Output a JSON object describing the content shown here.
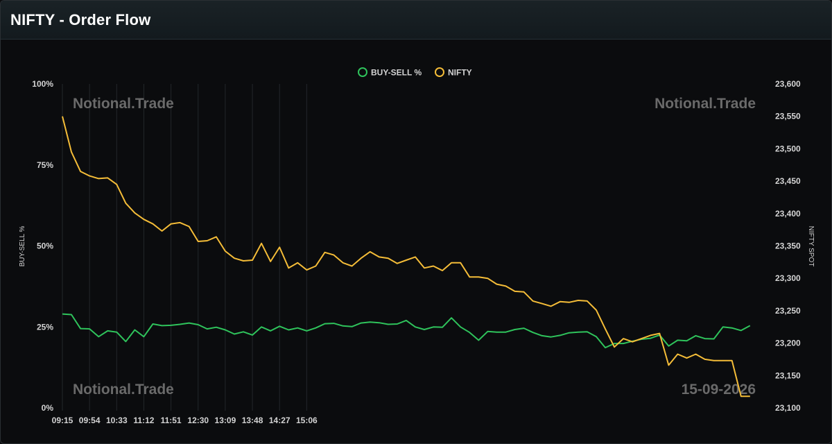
{
  "header": {
    "title": "NIFTY - Order Flow"
  },
  "watermarks": {
    "top_left": "Notional.Trade",
    "top_right": "Notional.Trade",
    "bottom_left": "Notional.Trade",
    "bottom_right": "15-09-2026"
  },
  "colors": {
    "buy_sell": "#2fc45c",
    "nifty": "#f5bd38",
    "grid": "#23272b",
    "axis_text": "#d4d4d4",
    "watermark": "#6a6a6a"
  },
  "chart_data": {
    "type": "line",
    "x_tick_labels": [
      "09:15",
      "09:54",
      "10:33",
      "11:12",
      "11:51",
      "12:30",
      "13:09",
      "13:48",
      "14:27",
      "15:06"
    ],
    "y_left": {
      "label": "BUY-SELL %",
      "ticks": [
        "0%",
        "25%",
        "50%",
        "75%",
        "100%"
      ],
      "range": [
        0,
        100
      ]
    },
    "y_right": {
      "label": "NIFTY SPOT",
      "ticks": [
        "23,100",
        "23,150",
        "23,200",
        "23,250",
        "23,300",
        "23,350",
        "23,400",
        "23,450",
        "23,500",
        "23,550",
        "23,600"
      ],
      "range": [
        23100,
        23600
      ]
    },
    "legend": {
      "position": "top-center"
    },
    "grid": "vertical",
    "series": [
      {
        "name": "BUY-SELL %",
        "axis": "left",
        "values": [
          29,
          28.8,
          24.5,
          24.4,
          22,
          23.8,
          23.4,
          20.5,
          24.1,
          22,
          25.9,
          25.4,
          25.5,
          25.8,
          26.2,
          25.7,
          24.4,
          24.9,
          24.1,
          22.8,
          23.5,
          22.5,
          25,
          23.8,
          25.2,
          24.1,
          24.7,
          23.8,
          24.7,
          26,
          26.1,
          25.3,
          25.1,
          26.2,
          26.5,
          26.3,
          25.8,
          25.9,
          27,
          25,
          24.2,
          25,
          24.9,
          27.8,
          25,
          23.3,
          20.9,
          23.6,
          23.4,
          23.4,
          24.2,
          24.6,
          23.3,
          22.3,
          21.9,
          22.4,
          23.2,
          23.4,
          23.5,
          22,
          18.6,
          19.9,
          19.9,
          20.6,
          21.2,
          21.5,
          22.5,
          19.1,
          20.9,
          20.7,
          22.3,
          21.4,
          21.3,
          25,
          24.7,
          23.9,
          25.4
        ]
      },
      {
        "name": "NIFTY",
        "axis": "right",
        "values": [
          23550,
          23495,
          23465,
          23458,
          23454,
          23455,
          23445,
          23416,
          23401,
          23391,
          23384,
          23373,
          23384,
          23386,
          23380,
          23357,
          23358,
          23364,
          23342,
          23331,
          23327,
          23328,
          23354,
          23326,
          23348,
          23316,
          23324,
          23313,
          23319,
          23340,
          23336,
          23324,
          23319,
          23331,
          23341,
          23333,
          23331,
          23323,
          23328,
          23333,
          23316,
          23319,
          23312,
          23324,
          23324,
          23302,
          23302,
          23300,
          23291,
          23288,
          23280,
          23279,
          23265,
          23261,
          23257,
          23264,
          23263,
          23266,
          23265,
          23251,
          23222,
          23194,
          23207,
          23202,
          23207,
          23212,
          23215,
          23166,
          23183,
          23177,
          23183,
          23175,
          23173,
          23173,
          23173,
          23118,
          23118
        ]
      }
    ]
  }
}
